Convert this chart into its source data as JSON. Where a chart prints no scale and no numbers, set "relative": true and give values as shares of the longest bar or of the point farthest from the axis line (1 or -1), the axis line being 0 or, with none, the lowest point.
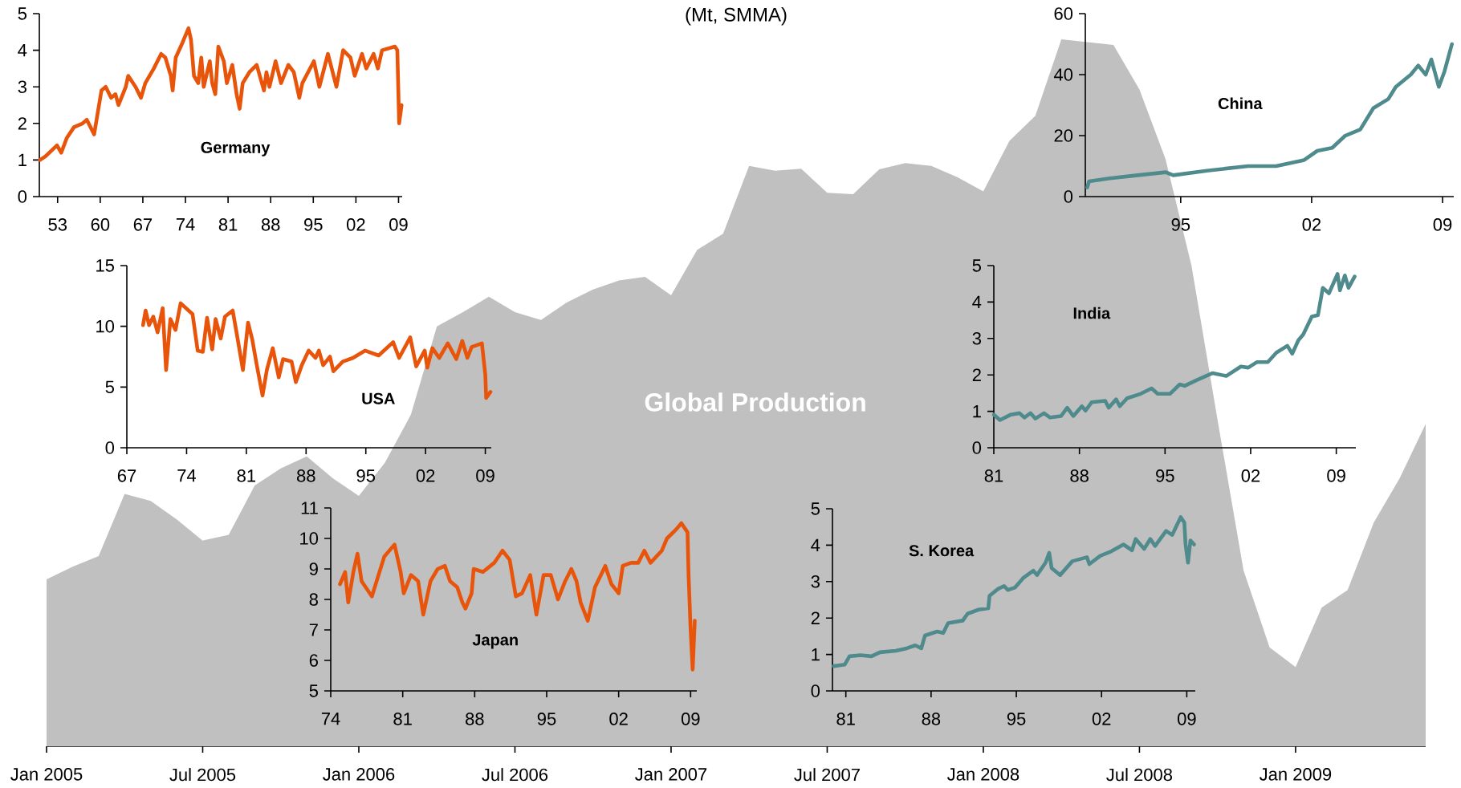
{
  "chart_data": [
    {
      "type": "area",
      "title": "(Mt, SMMA)",
      "relative": true,
      "x": [
        "2005-01",
        "2005-02",
        "2005-03",
        "2005-04",
        "2005-05",
        "2005-06",
        "2005-07",
        "2005-08",
        "2005-09",
        "2005-10",
        "2005-11",
        "2005-12",
        "2006-01",
        "2006-02",
        "2006-03",
        "2006-04",
        "2006-05",
        "2006-06",
        "2006-07",
        "2006-08",
        "2006-09",
        "2006-10",
        "2006-11",
        "2006-12",
        "2007-01",
        "2007-02",
        "2007-03",
        "2007-04",
        "2007-05",
        "2007-06",
        "2007-07",
        "2007-08",
        "2007-09",
        "2007-10",
        "2007-11",
        "2007-12",
        "2008-01",
        "2008-02",
        "2008-03",
        "2008-04",
        "2008-05",
        "2008-06",
        "2008-07",
        "2008-08",
        "2008-09",
        "2008-10",
        "2008-11",
        "2008-12",
        "2009-01",
        "2009-02",
        "2009-03",
        "2009-04",
        "2009-05",
        "2009-06"
      ],
      "series": [
        {
          "name": "Global Production",
          "color": "#c0c0c0",
          "values": [
            0.236,
            0.254,
            0.269,
            0.357,
            0.347,
            0.321,
            0.291,
            0.299,
            0.369,
            0.393,
            0.41,
            0.379,
            0.354,
            0.401,
            0.469,
            0.594,
            0.614,
            0.636,
            0.614,
            0.603,
            0.628,
            0.646,
            0.659,
            0.664,
            0.638,
            0.702,
            0.725,
            0.821,
            0.814,
            0.817,
            0.783,
            0.781,
            0.816,
            0.825,
            0.821,
            0.805,
            0.785,
            0.856,
            0.892,
            1.0,
            0.996,
            0.992,
            0.929,
            0.831,
            0.68,
            0.462,
            0.249,
            0.14,
            0.112,
            0.196,
            0.221,
            0.316,
            0.379,
            0.456
          ]
        }
      ],
      "xlim": [
        "2005-01",
        "2009-06"
      ],
      "xticks": [
        {
          "value": "2005-01",
          "label": "Jan 2005"
        },
        {
          "value": "2005-07",
          "label": "Jul 2005"
        },
        {
          "value": "2006-01",
          "label": "Jan 2006"
        },
        {
          "value": "2006-07",
          "label": "Jul 2006"
        },
        {
          "value": "2007-01",
          "label": "Jan 2007"
        },
        {
          "value": "2007-07",
          "label": "Jul 2007"
        },
        {
          "value": "2008-01",
          "label": "Jan 2008"
        },
        {
          "value": "2008-07",
          "label": "Jul 2008"
        },
        {
          "value": "2009-01",
          "label": "Jan 2009"
        }
      ]
    },
    {
      "type": "line",
      "x": [
        1950.1,
        1951.0,
        1952.9,
        1953.6,
        1954.5,
        1955.7,
        1957.1,
        1957.8,
        1959.0,
        1959.7,
        1960.2,
        1960.9,
        1961.8,
        1962.5,
        1963.0,
        1964.2,
        1964.6,
        1965.8,
        1966.7,
        1967.4,
        1968.8,
        1970.0,
        1970.7,
        1971.6,
        1971.9,
        1972.4,
        1973.5,
        1974.5,
        1974.9,
        1975.4,
        1976.1,
        1976.6,
        1977.0,
        1978.0,
        1978.4,
        1978.9,
        1979.4,
        1980.3,
        1980.8,
        1981.7,
        1982.4,
        1982.9,
        1983.4,
        1984.5,
        1985.7,
        1986.9,
        1987.3,
        1987.8,
        1988.8,
        1989.7,
        1990.9,
        1991.8,
        1992.7,
        1993.2,
        1995.1,
        1996.0,
        1997.4,
        1998.8,
        1999.9,
        2001.1,
        2001.8,
        2003.0,
        2003.7,
        2004.9,
        2005.6,
        2006.3,
        2008.4,
        2008.8,
        2009.1,
        2009.5
      ],
      "series": [
        {
          "name": "Germany",
          "color": "#e8540a",
          "values": [
            1.0,
            1.1,
            1.4,
            1.2,
            1.6,
            1.9,
            2.0,
            2.1,
            1.7,
            2.4,
            2.9,
            3.0,
            2.7,
            2.8,
            2.5,
            3.0,
            3.3,
            3.0,
            2.7,
            3.1,
            3.5,
            3.9,
            3.8,
            3.3,
            2.9,
            3.8,
            4.2,
            4.6,
            4.3,
            3.3,
            3.1,
            3.8,
            3.0,
            3.7,
            3.1,
            2.8,
            4.1,
            3.7,
            3.1,
            3.6,
            2.8,
            2.4,
            3.1,
            3.4,
            3.6,
            2.9,
            3.4,
            3.0,
            3.7,
            3.1,
            3.6,
            3.4,
            2.7,
            3.1,
            3.7,
            3.0,
            3.9,
            3.0,
            4.0,
            3.8,
            3.3,
            3.9,
            3.5,
            3.9,
            3.5,
            4.0,
            4.1,
            4.0,
            2.0,
            2.5
          ]
        }
      ],
      "xlim": [
        1950,
        2009.6
      ],
      "ylim": [
        0,
        5
      ],
      "yticks": [
        0,
        1,
        2,
        3,
        4,
        5
      ],
      "xticks": [
        {
          "value": 1953,
          "label": "53"
        },
        {
          "value": 1960,
          "label": "60"
        },
        {
          "value": 1967,
          "label": "67"
        },
        {
          "value": 1974,
          "label": "74"
        },
        {
          "value": 1981,
          "label": "81"
        },
        {
          "value": 1988,
          "label": "88"
        },
        {
          "value": 1995,
          "label": "95"
        },
        {
          "value": 2002,
          "label": "02"
        },
        {
          "value": 2009,
          "label": "09"
        }
      ]
    },
    {
      "type": "line",
      "x": [
        1990.0,
        1990.1,
        1991.2,
        1992.7,
        1994.2,
        1994.6,
        1996.4,
        1998.6,
        2000.1,
        2001.6,
        2002.3,
        2003.1,
        2003.8,
        2004.6,
        2005.3,
        2006.1,
        2006.5,
        2007.3,
        2007.7,
        2008.1,
        2008.4,
        2008.8,
        2009.1,
        2009.5
      ],
      "series": [
        {
          "name": "China",
          "color": "#4f8a8c",
          "values": [
            3,
            5,
            6,
            7,
            8,
            7,
            8.5,
            10,
            10,
            12,
            15,
            16,
            20,
            22,
            29,
            32,
            36,
            40,
            43,
            40,
            45,
            36,
            41,
            50
          ]
        }
      ],
      "xlim": [
        1989.9,
        2009.6
      ],
      "ylim": [
        0,
        60
      ],
      "yticks": [
        0,
        20,
        40,
        60
      ],
      "xticks": [
        {
          "value": 1995,
          "label": "95"
        },
        {
          "value": 2002,
          "label": "02"
        },
        {
          "value": 2009,
          "label": "09"
        }
      ]
    },
    {
      "type": "line",
      "x": [
        1968.9,
        1969.2,
        1969.6,
        1970.1,
        1970.6,
        1971.2,
        1971.6,
        1972.1,
        1972.7,
        1973.3,
        1974.7,
        1975.3,
        1975.9,
        1976.4,
        1977.0,
        1977.4,
        1978.0,
        1978.5,
        1979.4,
        1979.9,
        1980.6,
        1981.2,
        1981.7,
        1982.2,
        1982.9,
        1983.4,
        1984.1,
        1984.8,
        1985.3,
        1986.3,
        1986.8,
        1987.5,
        1988.3,
        1989.1,
        1989.5,
        1990.0,
        1990.8,
        1991.2,
        1992.3,
        1993.5,
        1994.9,
        1996.5,
        1998.2,
        1998.9,
        2000.2,
        2000.9,
        2001.9,
        2002.2,
        2002.8,
        2003.6,
        2004.6,
        2005.6,
        2006.3,
        2006.9,
        2007.4,
        2008.6,
        2009.0,
        2009.1,
        2009.6
      ],
      "series": [
        {
          "name": "USA",
          "color": "#e8540a",
          "values": [
            10.1,
            11.3,
            10.1,
            10.8,
            9.5,
            11.5,
            6.4,
            10.6,
            9.7,
            11.9,
            11.0,
            8.0,
            7.9,
            10.7,
            8.1,
            10.6,
            9.0,
            10.8,
            11.3,
            9.3,
            6.4,
            10.3,
            8.9,
            6.9,
            4.3,
            6.4,
            8.2,
            5.8,
            7.3,
            7.1,
            5.4,
            6.8,
            8.0,
            7.4,
            8.0,
            6.8,
            7.5,
            6.3,
            7.1,
            7.4,
            8.0,
            7.6,
            8.7,
            7.4,
            9.1,
            6.7,
            8.0,
            6.6,
            8.2,
            7.4,
            8.6,
            7.3,
            8.8,
            7.4,
            8.3,
            8.6,
            6.0,
            4.1,
            4.6
          ]
        }
      ],
      "xlim": [
        1967,
        2009.7
      ],
      "ylim": [
        0,
        15
      ],
      "yticks": [
        0,
        5,
        10,
        15
      ],
      "xticks": [
        {
          "value": 1967,
          "label": "67"
        },
        {
          "value": 1974,
          "label": "74"
        },
        {
          "value": 1981,
          "label": "81"
        },
        {
          "value": 1988,
          "label": "88"
        },
        {
          "value": 1995,
          "label": "95"
        },
        {
          "value": 2002,
          "label": "02"
        },
        {
          "value": 2009,
          "label": "09"
        }
      ]
    },
    {
      "type": "line",
      "x": [
        1981.0,
        1981.5,
        1982.4,
        1983.1,
        1983.5,
        1984.0,
        1984.4,
        1985.1,
        1985.6,
        1986.5,
        1987.0,
        1987.5,
        1988.2,
        1988.5,
        1989.0,
        1990.1,
        1990.4,
        1991.0,
        1991.3,
        1991.9,
        1993.0,
        1993.9,
        1994.4,
        1995.4,
        1996.2,
        1996.6,
        1997.6,
        1998.9,
        2000.0,
        2001.2,
        2001.8,
        2002.5,
        2003.4,
        2004.1,
        2005.0,
        2005.4,
        2005.9,
        2006.3,
        2007.0,
        2007.5,
        2007.9,
        2008.4,
        2009.1,
        2009.3,
        2009.7,
        2010.0,
        2010.5
      ],
      "series": [
        {
          "name": "India",
          "color": "#4f8a8c",
          "values": [
            0.91,
            0.76,
            0.91,
            0.95,
            0.83,
            0.95,
            0.8,
            0.95,
            0.83,
            0.87,
            1.1,
            0.87,
            1.14,
            1.02,
            1.25,
            1.29,
            1.1,
            1.33,
            1.14,
            1.36,
            1.48,
            1.63,
            1.48,
            1.48,
            1.74,
            1.7,
            1.86,
            2.05,
            1.97,
            2.23,
            2.2,
            2.35,
            2.35,
            2.61,
            2.8,
            2.58,
            2.95,
            3.11,
            3.6,
            3.64,
            4.39,
            4.24,
            4.77,
            4.32,
            4.73,
            4.39,
            4.7
          ]
        }
      ],
      "xlim": [
        1981,
        2010.6
      ],
      "ylim": [
        0,
        5
      ],
      "yticks": [
        0,
        1,
        2,
        3,
        4,
        5
      ],
      "xticks": [
        {
          "value": 1981,
          "label": "81"
        },
        {
          "value": 1988,
          "label": "88"
        },
        {
          "value": 1995,
          "label": "95"
        },
        {
          "value": 2002,
          "label": "02"
        },
        {
          "value": 2009,
          "label": "09"
        }
      ]
    },
    {
      "type": "line",
      "x": [
        1974.9,
        1975.4,
        1975.7,
        1976.2,
        1976.6,
        1977.0,
        1978.0,
        1979.2,
        1980.2,
        1980.8,
        1981.1,
        1981.8,
        1982.5,
        1983.0,
        1983.7,
        1984.4,
        1985.1,
        1985.6,
        1986.3,
        1986.8,
        1987.1,
        1987.7,
        1987.9,
        1988.8,
        1989.9,
        1990.7,
        1991.4,
        1992.0,
        1992.6,
        1993.4,
        1994.0,
        1994.7,
        1995.4,
        1996.1,
        1996.8,
        1997.4,
        1997.9,
        1998.3,
        1999.0,
        1999.7,
        2000.7,
        2001.3,
        2002.0,
        2002.4,
        2003.2,
        2003.9,
        2004.5,
        2005.1,
        2006.2,
        2006.7,
        2007.6,
        2008.1,
        2008.7,
        2008.8,
        2009.0,
        2009.2,
        2009.4
      ],
      "series": [
        {
          "name": "Japan",
          "color": "#e8540a",
          "values": [
            8.5,
            8.9,
            7.9,
            8.9,
            9.5,
            8.6,
            8.1,
            9.4,
            9.8,
            8.9,
            8.2,
            8.8,
            8.6,
            7.5,
            8.6,
            9.0,
            9.1,
            8.6,
            8.4,
            7.9,
            7.7,
            8.2,
            9.0,
            8.9,
            9.2,
            9.6,
            9.3,
            8.1,
            8.2,
            8.8,
            7.5,
            8.8,
            8.8,
            8.0,
            8.6,
            9.0,
            8.6,
            7.9,
            7.3,
            8.4,
            9.1,
            8.5,
            8.2,
            9.1,
            9.2,
            9.2,
            9.6,
            9.2,
            9.6,
            10.0,
            10.3,
            10.5,
            10.2,
            8.8,
            7.0,
            5.7,
            7.3
          ]
        }
      ],
      "xlim": [
        1974,
        2009.6
      ],
      "ylim": [
        5,
        11
      ],
      "yticks": [
        5,
        6,
        7,
        8,
        9,
        10,
        11
      ],
      "xticks": [
        {
          "value": 1974,
          "label": "74"
        },
        {
          "value": 1981,
          "label": "81"
        },
        {
          "value": 1988,
          "label": "88"
        },
        {
          "value": 1995,
          "label": "95"
        },
        {
          "value": 2002,
          "label": "02"
        },
        {
          "value": 2009,
          "label": "09"
        }
      ]
    },
    {
      "type": "line",
      "x": [
        1980.0,
        1980.9,
        1981.3,
        1982.2,
        1983.1,
        1983.8,
        1985.1,
        1986.0,
        1986.7,
        1987.2,
        1987.5,
        1988.5,
        1989.0,
        1989.4,
        1990.6,
        1991.0,
        1991.9,
        1992.7,
        1992.8,
        1993.5,
        1994.0,
        1994.3,
        1994.9,
        1995.6,
        1996.4,
        1996.7,
        1997.4,
        1997.7,
        1997.9,
        1998.6,
        1999.6,
        2000.8,
        2001.0,
        2001.9,
        2002.8,
        2003.8,
        2004.5,
        2004.8,
        2005.5,
        2006.0,
        2006.4,
        2007.3,
        2007.8,
        2008.5,
        2008.8,
        2008.9,
        2009.1,
        2009.3,
        2009.6
      ],
      "series": [
        {
          "name": "S. Korea",
          "color": "#4f8a8c",
          "values": [
            0.68,
            0.72,
            0.95,
            0.98,
            0.95,
            1.06,
            1.1,
            1.17,
            1.25,
            1.17,
            1.52,
            1.63,
            1.59,
            1.86,
            1.93,
            2.12,
            2.23,
            2.27,
            2.61,
            2.8,
            2.88,
            2.77,
            2.84,
            3.11,
            3.3,
            3.18,
            3.52,
            3.79,
            3.37,
            3.18,
            3.56,
            3.67,
            3.48,
            3.71,
            3.83,
            4.02,
            3.86,
            4.17,
            3.9,
            4.17,
            3.98,
            4.39,
            4.28,
            4.77,
            4.62,
            4.02,
            3.52,
            4.13,
            4.02
          ]
        }
      ],
      "xlim": [
        1979.9,
        2009.7
      ],
      "ylim": [
        0,
        5
      ],
      "yticks": [
        0,
        1,
        2,
        3,
        4,
        5
      ],
      "xticks": [
        {
          "value": 1981,
          "label": "81"
        },
        {
          "value": 1988,
          "label": "88"
        },
        {
          "value": 1995,
          "label": "95"
        },
        {
          "value": 2002,
          "label": "02"
        },
        {
          "value": 2009,
          "label": "09"
        }
      ]
    }
  ]
}
